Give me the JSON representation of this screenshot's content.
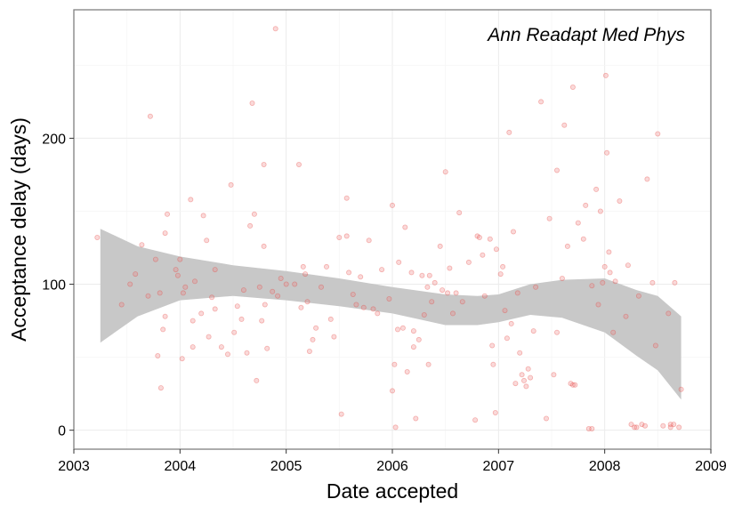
{
  "chart_data": {
    "type": "scatter",
    "title": "",
    "annotation": "Ann Readapt Med Phys",
    "xlabel": "Date accepted",
    "ylabel": "Acceptance delay (days)",
    "xlim": [
      2003.0,
      2009.0
    ],
    "ylim": [
      -13,
      288
    ],
    "x_ticks": [
      2003,
      2004,
      2005,
      2006,
      2007,
      2008,
      2009
    ],
    "x_tick_labels": [
      "2003",
      "2004",
      "2005",
      "2006",
      "2007",
      "2008",
      "2009"
    ],
    "y_ticks": [
      0,
      100,
      200
    ],
    "y_tick_labels": [
      "0",
      "100",
      "200"
    ],
    "grid": true,
    "point_color": "#f08080",
    "band_color": "#c8c8c8",
    "points": [
      [
        2003.22,
        132
      ],
      [
        2003.45,
        86
      ],
      [
        2003.53,
        100
      ],
      [
        2003.58,
        107
      ],
      [
        2003.64,
        127
      ],
      [
        2003.72,
        215
      ],
      [
        2003.7,
        92
      ],
      [
        2003.77,
        117
      ],
      [
        2003.79,
        51
      ],
      [
        2003.82,
        29
      ],
      [
        2003.81,
        94
      ],
      [
        2003.84,
        69
      ],
      [
        2003.86,
        78
      ],
      [
        2003.86,
        135
      ],
      [
        2003.88,
        148
      ],
      [
        2003.96,
        110
      ],
      [
        2003.98,
        106
      ],
      [
        2004.0,
        117
      ],
      [
        2004.02,
        49
      ],
      [
        2004.03,
        94
      ],
      [
        2004.05,
        98
      ],
      [
        2004.1,
        158
      ],
      [
        2004.12,
        75
      ],
      [
        2004.12,
        57
      ],
      [
        2004.14,
        102
      ],
      [
        2004.2,
        80
      ],
      [
        2004.22,
        147
      ],
      [
        2004.25,
        130
      ],
      [
        2004.27,
        64
      ],
      [
        2004.3,
        91
      ],
      [
        2004.33,
        83
      ],
      [
        2004.33,
        110
      ],
      [
        2004.39,
        57
      ],
      [
        2004.45,
        52
      ],
      [
        2004.48,
        168
      ],
      [
        2004.51,
        67
      ],
      [
        2004.54,
        85
      ],
      [
        2004.58,
        76
      ],
      [
        2004.6,
        96
      ],
      [
        2004.63,
        53
      ],
      [
        2004.66,
        140
      ],
      [
        2004.68,
        224
      ],
      [
        2004.7,
        148
      ],
      [
        2004.72,
        34
      ],
      [
        2004.75,
        98
      ],
      [
        2004.77,
        75
      ],
      [
        2004.79,
        182
      ],
      [
        2004.79,
        126
      ],
      [
        2004.82,
        56
      ],
      [
        2004.87,
        95
      ],
      [
        2004.9,
        275
      ],
      [
        2004.92,
        92
      ],
      [
        2004.95,
        104
      ],
      [
        2005.0,
        100
      ],
      [
        2005.08,
        100
      ],
      [
        2005.12,
        182
      ],
      [
        2005.14,
        84
      ],
      [
        2005.16,
        112
      ],
      [
        2005.18,
        107
      ],
      [
        2005.2,
        88
      ],
      [
        2005.22,
        54
      ],
      [
        2005.25,
        62
      ],
      [
        2005.28,
        70
      ],
      [
        2005.33,
        98
      ],
      [
        2005.38,
        112
      ],
      [
        2005.42,
        76
      ],
      [
        2005.45,
        64
      ],
      [
        2005.5,
        132
      ],
      [
        2005.52,
        11
      ],
      [
        2005.57,
        133
      ],
      [
        2005.57,
        159
      ],
      [
        2005.59,
        108
      ],
      [
        2005.63,
        93
      ],
      [
        2005.66,
        86
      ],
      [
        2005.7,
        105
      ],
      [
        2005.73,
        84
      ],
      [
        2005.78,
        130
      ],
      [
        2005.82,
        83
      ],
      [
        2005.86,
        80
      ],
      [
        2005.9,
        110
      ],
      [
        2005.97,
        90
      ],
      [
        2006.0,
        27
      ],
      [
        2006.0,
        154
      ],
      [
        2006.02,
        45
      ],
      [
        2006.03,
        2
      ],
      [
        2006.05,
        69
      ],
      [
        2006.06,
        115
      ],
      [
        2006.1,
        70
      ],
      [
        2006.12,
        139
      ],
      [
        2006.14,
        40
      ],
      [
        2006.18,
        108
      ],
      [
        2006.2,
        57
      ],
      [
        2006.2,
        68
      ],
      [
        2006.22,
        8
      ],
      [
        2006.25,
        62
      ],
      [
        2006.28,
        106
      ],
      [
        2006.3,
        79
      ],
      [
        2006.33,
        98
      ],
      [
        2006.34,
        45
      ],
      [
        2006.37,
        88
      ],
      [
        2006.4,
        101
      ],
      [
        2006.45,
        126
      ],
      [
        2006.47,
        96
      ],
      [
        2006.5,
        177
      ],
      [
        2006.52,
        94
      ],
      [
        2006.54,
        111
      ],
      [
        2006.57,
        80
      ],
      [
        2006.6,
        94
      ],
      [
        2006.63,
        149
      ],
      [
        2006.66,
        88
      ],
      [
        2006.72,
        115
      ],
      [
        2006.78,
        7
      ],
      [
        2006.8,
        133
      ],
      [
        2006.82,
        132
      ],
      [
        2006.85,
        120
      ],
      [
        2006.87,
        92
      ],
      [
        2006.92,
        131
      ],
      [
        2006.94,
        58
      ],
      [
        2006.95,
        45
      ],
      [
        2006.97,
        12
      ],
      [
        2006.98,
        124
      ],
      [
        2007.02,
        107
      ],
      [
        2007.04,
        112
      ],
      [
        2007.06,
        82
      ],
      [
        2007.08,
        63
      ],
      [
        2007.1,
        204
      ],
      [
        2007.12,
        73
      ],
      [
        2007.14,
        136
      ],
      [
        2007.16,
        32
      ],
      [
        2007.18,
        94
      ],
      [
        2007.2,
        53
      ],
      [
        2007.22,
        38
      ],
      [
        2007.24,
        34
      ],
      [
        2007.26,
        30
      ],
      [
        2007.28,
        42
      ],
      [
        2007.3,
        36
      ],
      [
        2007.33,
        68
      ],
      [
        2007.35,
        98
      ],
      [
        2007.4,
        225
      ],
      [
        2007.45,
        8
      ],
      [
        2007.48,
        145
      ],
      [
        2007.52,
        38
      ],
      [
        2007.55,
        178
      ],
      [
        2007.6,
        104
      ],
      [
        2007.62,
        209
      ],
      [
        2007.65,
        126
      ],
      [
        2007.68,
        32
      ],
      [
        2007.7,
        31
      ],
      [
        2007.72,
        31
      ],
      [
        2007.75,
        142
      ],
      [
        2007.8,
        131
      ],
      [
        2007.82,
        154
      ],
      [
        2007.85,
        1
      ],
      [
        2007.88,
        1
      ],
      [
        2007.92,
        165
      ],
      [
        2007.94,
        86
      ],
      [
        2007.96,
        150
      ],
      [
        2007.98,
        101
      ],
      [
        2008.0,
        112
      ],
      [
        2008.01,
        243
      ],
      [
        2008.02,
        190
      ],
      [
        2008.04,
        122
      ],
      [
        2008.05,
        108
      ],
      [
        2008.08,
        67
      ],
      [
        2008.1,
        102
      ],
      [
        2008.14,
        157
      ],
      [
        2008.2,
        78
      ],
      [
        2008.22,
        113
      ],
      [
        2008.25,
        4
      ],
      [
        2008.28,
        2
      ],
      [
        2008.3,
        2
      ],
      [
        2008.32,
        92
      ],
      [
        2008.35,
        4
      ],
      [
        2008.38,
        3
      ],
      [
        2008.4,
        172
      ],
      [
        2008.45,
        101
      ],
      [
        2008.48,
        58
      ],
      [
        2008.5,
        203
      ],
      [
        2008.55,
        3
      ],
      [
        2008.6,
        80
      ],
      [
        2008.62,
        4
      ],
      [
        2008.62,
        2
      ],
      [
        2008.65,
        4
      ],
      [
        2008.66,
        101
      ],
      [
        2008.7,
        2
      ],
      [
        2008.72,
        28
      ],
      [
        2007.88,
        99
      ],
      [
        2007.7,
        235
      ],
      [
        2007.55,
        67
      ],
      [
        2006.35,
        106
      ],
      [
        2004.8,
        86
      ]
    ],
    "band_upper": [
      [
        2003.25,
        138
      ],
      [
        2003.6,
        126
      ],
      [
        2004.0,
        119
      ],
      [
        2004.5,
        113
      ],
      [
        2005.0,
        109
      ],
      [
        2005.5,
        104
      ],
      [
        2006.0,
        98
      ],
      [
        2006.5,
        93
      ],
      [
        2006.8,
        92
      ],
      [
        2007.0,
        93
      ],
      [
        2007.3,
        100
      ],
      [
        2007.6,
        103
      ],
      [
        2008.0,
        104
      ],
      [
        2008.3,
        96
      ],
      [
        2008.5,
        92
      ],
      [
        2008.72,
        78
      ]
    ],
    "band_lower": [
      [
        2003.25,
        60
      ],
      [
        2003.6,
        78
      ],
      [
        2004.0,
        89
      ],
      [
        2004.5,
        92
      ],
      [
        2005.0,
        89
      ],
      [
        2005.5,
        85
      ],
      [
        2006.0,
        80
      ],
      [
        2006.5,
        72
      ],
      [
        2006.8,
        72
      ],
      [
        2007.0,
        74
      ],
      [
        2007.3,
        79
      ],
      [
        2007.6,
        77
      ],
      [
        2008.0,
        67
      ],
      [
        2008.3,
        51
      ],
      [
        2008.5,
        41
      ],
      [
        2008.72,
        21
      ]
    ]
  }
}
